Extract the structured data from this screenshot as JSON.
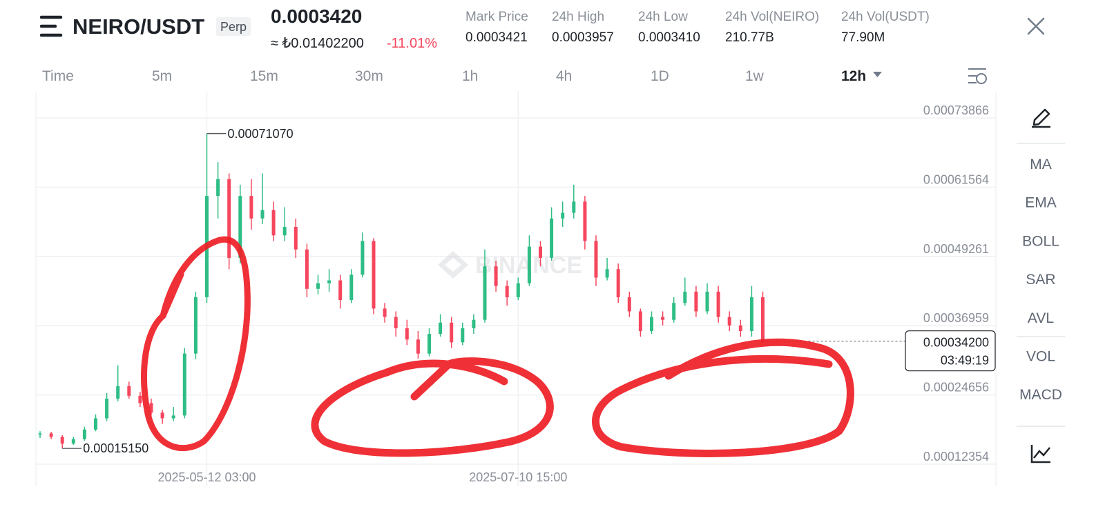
{
  "header": {
    "symbol": "NEIRO/USDT",
    "contract": "Perp",
    "last_price": "0.0003420",
    "fiat_price": "≈ ₺0.01402200",
    "change": "-11.01%",
    "stats": [
      {
        "label": "Mark Price",
        "value": "0.0003421"
      },
      {
        "label": "24h High",
        "value": "0.0003957"
      },
      {
        "label": "24h Low",
        "value": "0.0003410"
      },
      {
        "label": "24h Vol(NEIRO)",
        "value": "210.77B"
      },
      {
        "label": "24h Vol(USDT)",
        "value": "77.90M"
      }
    ]
  },
  "timeframes": [
    "Time",
    "5m",
    "15m",
    "30m",
    "1h",
    "4h",
    "1D",
    "1w",
    "12h"
  ],
  "active_timeframe": "12h",
  "indicators": [
    "MA",
    "EMA",
    "BOLL",
    "SAR",
    "AVL",
    "VOL",
    "MACD"
  ],
  "chart_data": {
    "type": "candlestick",
    "watermark": "BINANCE",
    "up_color": "#2ebd85",
    "down_color": "#f6465d",
    "categories": [
      null,
      null,
      null,
      null,
      null,
      null,
      null,
      null,
      null,
      null,
      null,
      null,
      null,
      null,
      null,
      "2025-05-12 03:00",
      null,
      null,
      null,
      null,
      null,
      null,
      null,
      null,
      null,
      null,
      null,
      null,
      null,
      null,
      null,
      null,
      null,
      null,
      null,
      null,
      null,
      null,
      null,
      null,
      null,
      null,
      null,
      "2025-07-10 15:00",
      null,
      null,
      null,
      null,
      null,
      null,
      null,
      null,
      null,
      null,
      null,
      null,
      null,
      null,
      null,
      null,
      null,
      null,
      null,
      null,
      null,
      null
    ],
    "open": [
      0.000176,
      0.000178,
      0.000172,
      0.00016,
      0.000168,
      0.000185,
      0.000205,
      0.00024,
      0.000262,
      0.000245,
      0.000232,
      0.000215,
      0.000205,
      0.00021,
      0.00032,
      0.00042,
      0.0006,
      0.00063,
      0.00049,
      0.0006,
      0.00056,
      0.000575,
      0.00053,
      0.000545,
      0.000505,
      0.000435,
      0.000445,
      0.00045,
      0.000415,
      0.00046,
      0.00052,
      0.0004,
      0.000385,
      0.000365,
      0.000345,
      0.00032,
      0.000355,
      0.000375,
      0.00034,
      0.000365,
      0.00038,
      0.000475,
      0.00044,
      0.00042,
      0.000445,
      0.00051,
      0.00049,
      0.00056,
      0.00057,
      0.00059,
      0.00052,
      0.000455,
      0.00047,
      0.00042,
      0.000395,
      0.00036,
      0.000385,
      0.00038,
      0.00041,
      0.00043,
      0.000395,
      0.00043,
      0.000385,
      0.00037,
      0.00036,
      0.00042
    ],
    "high": [
      0.000182,
      0.000181,
      0.000175,
      0.000172,
      0.00019,
      0.000212,
      0.00025,
      0.000299,
      0.00027,
      0.000252,
      0.00024,
      0.00022,
      0.000225,
      0.00033,
      0.00043,
      0.0007107,
      0.00066,
      0.00064,
      0.00062,
      0.00063,
      0.00064,
      0.00059,
      0.00058,
      0.00056,
      0.000515,
      0.00046,
      0.00047,
      0.00046,
      0.00047,
      0.000535,
      0.000525,
      0.00041,
      0.000395,
      0.00038,
      0.00036,
      0.000365,
      0.00039,
      0.000385,
      0.000375,
      0.00039,
      0.000505,
      0.000485,
      0.00045,
      0.000455,
      0.00053,
      0.00052,
      0.00058,
      0.00059,
      0.00062,
      0.0006,
      0.00053,
      0.00049,
      0.00048,
      0.00043,
      0.0004,
      0.000395,
      0.000395,
      0.00042,
      0.000455,
      0.00044,
      0.000445,
      0.00044,
      0.000395,
      0.00038,
      0.00044,
      0.00043
    ],
    "low": [
      0.00017,
      0.000168,
      0.0001515,
      0.000158,
      0.000165,
      0.000182,
      0.0002,
      0.000235,
      0.00024,
      0.000225,
      0.00021,
      0.000195,
      0.0002,
      0.000205,
      0.00031,
      0.00041,
      0.00056,
      0.00047,
      0.00048,
      0.00054,
      0.00055,
      0.00052,
      0.00052,
      0.00049,
      0.00042,
      0.000425,
      0.00043,
      0.0004,
      0.00041,
      0.000455,
      0.00039,
      0.000375,
      0.00035,
      0.000335,
      0.000311,
      0.000315,
      0.00035,
      0.00033,
      0.000335,
      0.000355,
      0.000375,
      0.00043,
      0.000405,
      0.000415,
      0.00044,
      0.000475,
      0.000485,
      0.000545,
      0.00056,
      0.000505,
      0.00044,
      0.00045,
      0.00041,
      0.000385,
      0.00035,
      0.000355,
      0.00037,
      0.000375,
      0.000405,
      0.000385,
      0.00039,
      0.000375,
      0.00036,
      0.00035,
      0.00035,
      0.000338
    ],
    "close": [
      0.000178,
      0.000172,
      0.00016,
      0.000168,
      0.000185,
      0.000205,
      0.00024,
      0.000262,
      0.000245,
      0.000232,
      0.000215,
      0.000205,
      0.00021,
      0.00032,
      0.00042,
      0.0006,
      0.00063,
      0.00049,
      0.0006,
      0.00056,
      0.000575,
      0.00053,
      0.000545,
      0.000505,
      0.000435,
      0.000445,
      0.00045,
      0.000415,
      0.00046,
      0.00052,
      0.0004,
      0.000385,
      0.000365,
      0.000345,
      0.00032,
      0.000355,
      0.000375,
      0.00034,
      0.000365,
      0.00038,
      0.000475,
      0.00044,
      0.00042,
      0.000445,
      0.00051,
      0.00049,
      0.00056,
      0.00057,
      0.00059,
      0.00052,
      0.000455,
      0.00047,
      0.00042,
      0.000395,
      0.00036,
      0.000385,
      0.00038,
      0.00041,
      0.00043,
      0.000395,
      0.00043,
      0.000385,
      0.00037,
      0.00036,
      0.00042,
      0.000342
    ],
    "ylim": [
      8.43e-05,
      0.0007864
    ],
    "yticks": [
      0.00012354,
      0.00024656,
      0.00036959,
      0.00049261,
      0.00061564,
      0.00073866
    ],
    "grid": true,
    "max_label": {
      "value": 0.0007107,
      "label": "0.00071070"
    },
    "min_label": {
      "value": 0.0001515,
      "label": "0.00015150"
    },
    "current_price": {
      "value": 0.000342,
      "label": "0.00034200"
    },
    "countdown": "03:49:19"
  }
}
